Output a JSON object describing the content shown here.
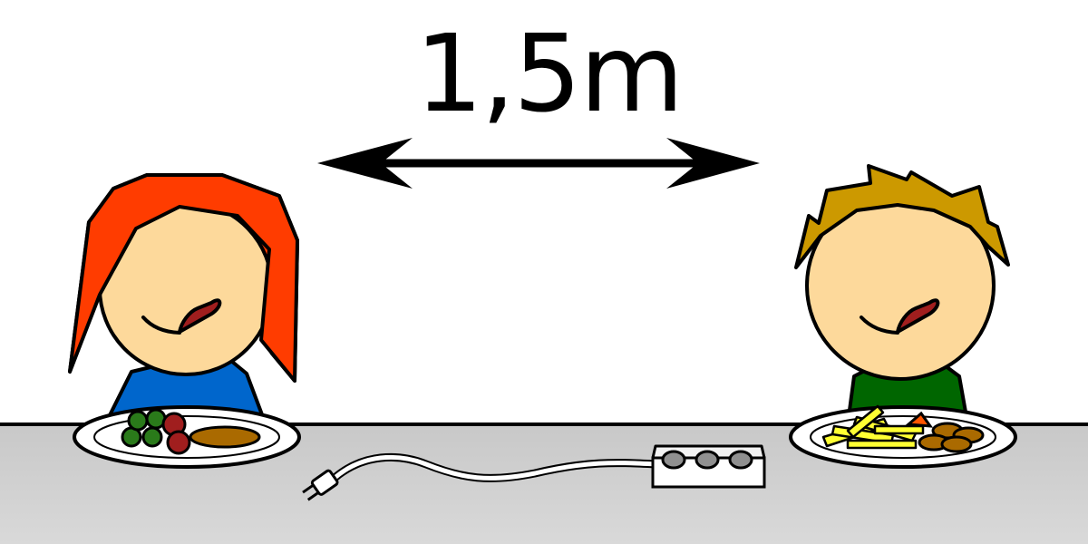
{
  "distance": {
    "label": "1,5m"
  },
  "colors": {
    "background": "#ffffff",
    "table_top": "#c8c8c8",
    "table_bottom": "#d8d8d8",
    "outline": "#000000",
    "skin": "#fdd99b",
    "tongue": "#a01e1e",
    "girl_hair": "#ff3c00",
    "girl_shirt": "#0066cc",
    "boy_hair": "#cc9900",
    "boy_shirt": "#006600",
    "plate": "#ffffff",
    "fries": "#ffff33",
    "power_strip": "#ffffff",
    "socket": "#909090"
  },
  "people": [
    {
      "id": "girl",
      "plate_food": [
        "peas",
        "tomatoes",
        "sausage"
      ]
    },
    {
      "id": "boy",
      "plate_food": [
        "fries",
        "meatballs",
        "carrot"
      ]
    }
  ]
}
